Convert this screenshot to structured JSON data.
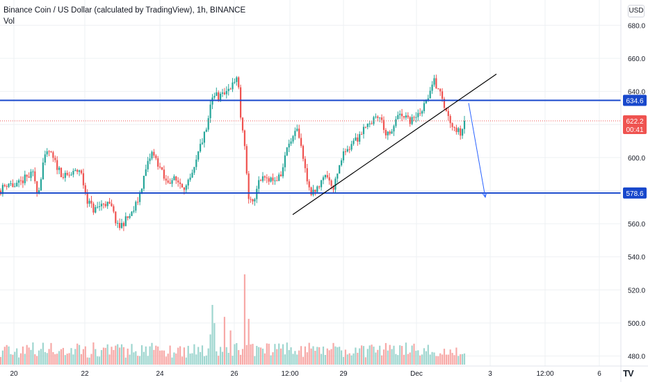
{
  "header": {
    "title": "Binance Coin / US Dollar (calculated by TradingView), 1h, BINANCE",
    "indicator": "Vol"
  },
  "currency_badge": "USD",
  "logo_text": "TV",
  "colors": {
    "up": "#26a69a",
    "down": "#ef5350",
    "up_vol": "#9ed6cf",
    "down_vol": "#f7a9a7",
    "level_line": "#1848cc",
    "arrow": "#2962ff",
    "grid": "#eef0f3",
    "axis_text": "#131722",
    "last_price_badge": "#ef5350"
  },
  "chart_data": {
    "type": "candlestick",
    "symbol": "Binance Coin / US Dollar",
    "interval": "1h",
    "exchange": "BINANCE",
    "y_axis": {
      "ticks": [
        480,
        500,
        520,
        540,
        560,
        580,
        600,
        620,
        640,
        660,
        680
      ],
      "tick_labels": [
        "480.0",
        "500.0",
        "520.0",
        "540.0",
        "560.0",
        "580.0",
        "600.0",
        "620.0",
        "640.0",
        "660.0",
        "680.0"
      ],
      "range": [
        474,
        689
      ]
    },
    "x_axis": {
      "tick_labels": [
        "20",
        "22",
        "24",
        "26",
        "12:00",
        "29",
        "Dec",
        "3",
        "12:00",
        "6"
      ],
      "tick_x": [
        20,
        122,
        230,
        337,
        417,
        494,
        599,
        705,
        784,
        862
      ]
    },
    "levels": [
      {
        "label": "634.6",
        "value": 634.6
      },
      {
        "label": "578.6",
        "value": 578.6
      }
    ],
    "last_price": {
      "label": "622.2",
      "value": 622.2,
      "countdown": "00:41"
    },
    "trendline": {
      "from": [
        421,
        565.5
      ],
      "to": [
        714,
        650.5
      ]
    },
    "projection_arrow": {
      "from": [
        674,
        633
      ],
      "to": [
        698,
        576
      ]
    },
    "path": [
      [
        0,
        580
      ],
      [
        12,
        585
      ],
      [
        22,
        582
      ],
      [
        35,
        587
      ],
      [
        48,
        590
      ],
      [
        55,
        578
      ],
      [
        62,
        597
      ],
      [
        70,
        604
      ],
      [
        80,
        596
      ],
      [
        92,
        588
      ],
      [
        104,
        590
      ],
      [
        115,
        593
      ],
      [
        125,
        575
      ],
      [
        135,
        568
      ],
      [
        150,
        573
      ],
      [
        160,
        570
      ],
      [
        170,
        557
      ],
      [
        180,
        562
      ],
      [
        190,
        566
      ],
      [
        200,
        576
      ],
      [
        208,
        590
      ],
      [
        218,
        603
      ],
      [
        228,
        596
      ],
      [
        238,
        585
      ],
      [
        248,
        587
      ],
      [
        258,
        585
      ],
      [
        268,
        582
      ],
      [
        278,
        590
      ],
      [
        288,
        607
      ],
      [
        298,
        618
      ],
      [
        306,
        640
      ],
      [
        315,
        636
      ],
      [
        325,
        639
      ],
      [
        333,
        643
      ],
      [
        342,
        650
      ],
      [
        346,
        625
      ],
      [
        352,
        605
      ],
      [
        358,
        575
      ],
      [
        364,
        572
      ],
      [
        372,
        587
      ],
      [
        382,
        589
      ],
      [
        395,
        586
      ],
      [
        405,
        590
      ],
      [
        412,
        605
      ],
      [
        420,
        611
      ],
      [
        428,
        616
      ],
      [
        436,
        600
      ],
      [
        443,
        583
      ],
      [
        450,
        578
      ],
      [
        458,
        582
      ],
      [
        465,
        590
      ],
      [
        472,
        588
      ],
      [
        480,
        582
      ],
      [
        488,
        596
      ],
      [
        496,
        604
      ],
      [
        505,
        608
      ],
      [
        515,
        612
      ],
      [
        525,
        620
      ],
      [
        535,
        622
      ],
      [
        545,
        626
      ],
      [
        555,
        615
      ],
      [
        562,
        612
      ],
      [
        570,
        625
      ],
      [
        580,
        624
      ],
      [
        590,
        622
      ],
      [
        600,
        625
      ],
      [
        610,
        631
      ],
      [
        618,
        640
      ],
      [
        624,
        646
      ],
      [
        630,
        643
      ],
      [
        638,
        632
      ],
      [
        645,
        624
      ],
      [
        652,
        620
      ],
      [
        658,
        616
      ],
      [
        662,
        615
      ],
      [
        668,
        622
      ]
    ],
    "last_x": 668
  }
}
